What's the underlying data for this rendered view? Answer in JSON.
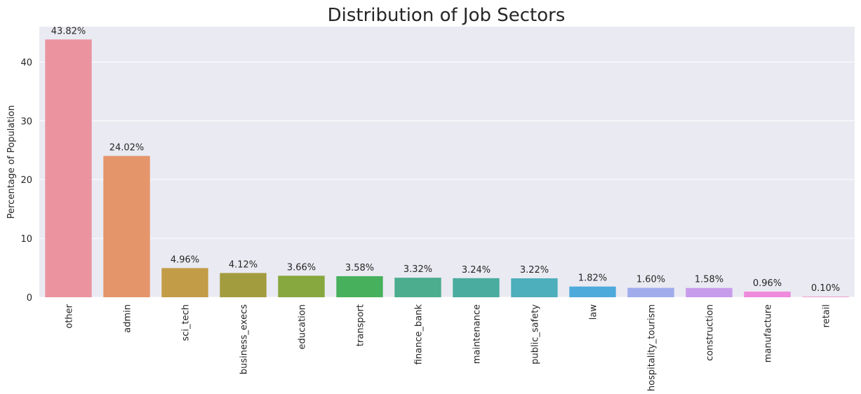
{
  "chart_data": {
    "type": "bar",
    "title": "Distribution of Job Sectors",
    "xlabel": "",
    "ylabel": "Percentage of Population",
    "ylim": [
      0,
      46
    ],
    "yticks": [
      0,
      10,
      20,
      30,
      40
    ],
    "grid": true,
    "categories": [
      "other",
      "admin",
      "sci_tech",
      "business_execs",
      "education",
      "transport",
      "finance_bank",
      "maintenance",
      "public_safety",
      "law",
      "hospitality_tourism",
      "construction",
      "manufacture",
      "retail"
    ],
    "values": [
      43.82,
      24.02,
      4.96,
      4.12,
      3.66,
      3.58,
      3.32,
      3.24,
      3.22,
      1.82,
      1.6,
      1.58,
      0.96,
      0.1
    ],
    "value_labels": [
      "43.82%",
      "24.02%",
      "4.96%",
      "4.12%",
      "3.66%",
      "3.58%",
      "3.32%",
      "3.24%",
      "3.22%",
      "1.82%",
      "1.60%",
      "1.58%",
      "0.96%",
      "0.10%"
    ],
    "colors": [
      "#ec93a0",
      "#e4956a",
      "#c29c46",
      "#a39c3f",
      "#87a73f",
      "#47b05c",
      "#4bac8e",
      "#49ac9f",
      "#4daebc",
      "#4eaadb",
      "#a0aceb",
      "#c89cec",
      "#ef8add",
      "#ef93c3"
    ],
    "plot_background": "#eaeaf2",
    "grid_color": "#ffffff"
  }
}
